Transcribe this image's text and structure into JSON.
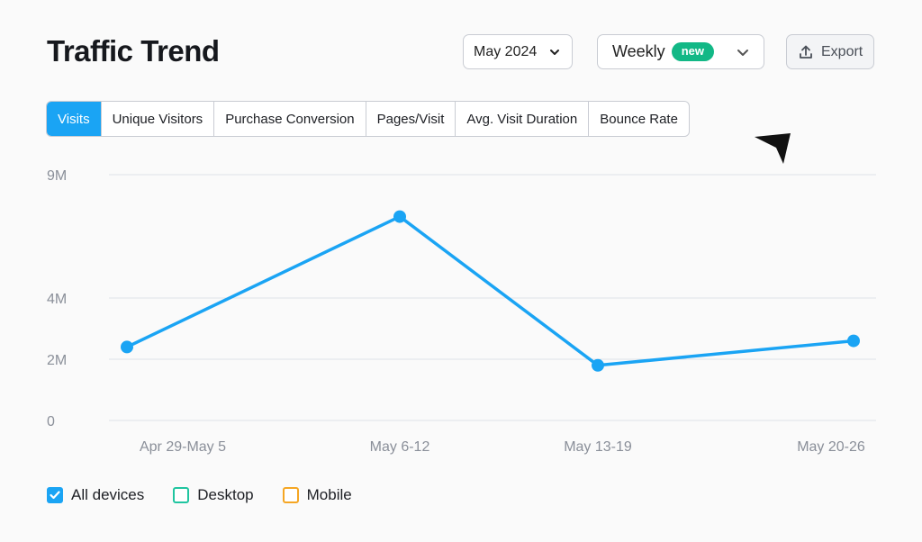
{
  "header": {
    "title": "Traffic Trend",
    "month_select": "May 2024",
    "period_select": "Weekly",
    "period_badge": "new",
    "export_label": "Export"
  },
  "tabs": [
    {
      "label": "Visits",
      "active": true
    },
    {
      "label": "Unique Visitors",
      "active": false
    },
    {
      "label": "Purchase Conversion",
      "active": false
    },
    {
      "label": "Pages/Visit",
      "active": false
    },
    {
      "label": "Avg. Visit Duration",
      "active": false
    },
    {
      "label": "Bounce Rate",
      "active": false
    }
  ],
  "legend": [
    {
      "label": "All devices",
      "checked": true,
      "color": "#1aa4f4"
    },
    {
      "label": "Desktop",
      "checked": false,
      "color": "#20c5a0"
    },
    {
      "label": "Mobile",
      "checked": false,
      "color": "#f5a623"
    }
  ],
  "colors": {
    "accent": "#1aa4f4",
    "gridline": "#dde1e8",
    "tick_text": "#8a8f99",
    "badge": "#12b886"
  },
  "chart_data": {
    "type": "line",
    "categories": [
      "Apr 29-May 5",
      "May 6-12",
      "May 13-19",
      "May 20-26"
    ],
    "series": [
      {
        "values": [
          2400000,
          7300000,
          1800000,
          2600000
        ]
      }
    ],
    "y_ticks": [
      {
        "value": 0,
        "label": "0"
      },
      {
        "value": 2000000,
        "label": "2M"
      },
      {
        "value": 4000000,
        "label": "4M"
      },
      {
        "value": 9000000,
        "label": "9M"
      }
    ],
    "ylim": [
      0,
      9000000
    ],
    "grid": true,
    "legend_position": "bottom-left"
  }
}
